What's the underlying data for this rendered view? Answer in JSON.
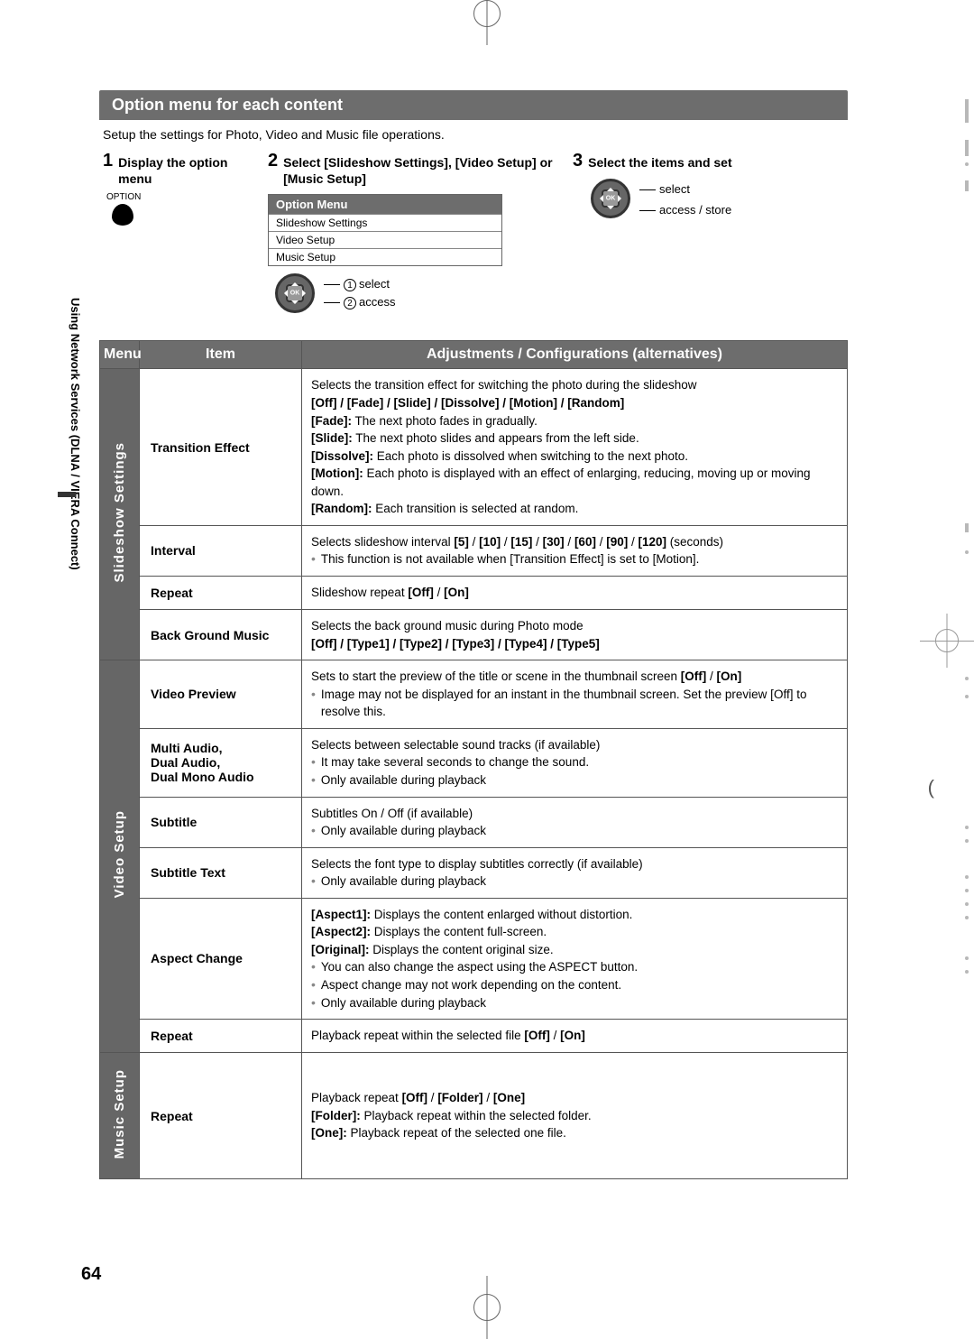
{
  "page_number": "64",
  "side_label": "Using Network Services (DLNA / VIERA Connect)",
  "section_title": "Option menu for each content",
  "intro_text": "Setup the settings for Photo, Video and Music file operations.",
  "steps": {
    "s1": {
      "num": "1",
      "text": "Display the option menu",
      "btn_caption": "OPTION"
    },
    "s2": {
      "num": "2",
      "text": "Select [Slideshow Settings], [Video Setup] or [Music Setup]",
      "menu_title": "Option Menu",
      "items": [
        "Slideshow Settings",
        "Video Setup",
        "Music Setup"
      ],
      "label_select": "select",
      "label_access": "access"
    },
    "s3": {
      "num": "3",
      "text": "Select the items and set",
      "label_select": "select",
      "label_access": "access / store"
    }
  },
  "table": {
    "headers": {
      "menu": "Menu",
      "item": "Item",
      "adj": "Adjustments / Configurations (alternatives)"
    },
    "groups": [
      {
        "cat": "Slideshow Settings",
        "rows": [
          {
            "item": "Transition Effect",
            "lines": [
              {
                "t": "Selects the transition effect for switching the photo during the slideshow"
              },
              {
                "b": "[Off] / [Fade] / [Slide] / [Dissolve] / [Motion] / [Random]"
              },
              {
                "h": "[Fade]: The next photo fades in gradually."
              },
              {
                "h": "[Slide]: The next photo slides and appears from the left side."
              },
              {
                "h": "[Dissolve]: Each photo is dissolved when switching to the next photo."
              },
              {
                "h": "[Motion]: Each photo is displayed with an effect of enlarging, reducing, moving up or moving down."
              },
              {
                "h": "[Random]: Each transition is selected at random."
              }
            ]
          },
          {
            "item": "Interval",
            "lines": [
              {
                "m": "Selects slideshow interval [5] / [10] / [15] / [30] / [60] / [90] / [120] (seconds)"
              },
              {
                "bl": "This function is not available when [Transition Effect] is set to [Motion]."
              }
            ]
          },
          {
            "item": "Repeat",
            "lines": [
              {
                "m": "Slideshow repeat [Off] / [On]"
              }
            ]
          },
          {
            "item": "Back Ground Music",
            "lines": [
              {
                "t": "Selects the back ground music during Photo mode"
              },
              {
                "b": "[Off] / [Type1] / [Type2] / [Type3] / [Type4] / [Type5]"
              }
            ]
          }
        ]
      },
      {
        "cat": "Video Setup",
        "rows": [
          {
            "item": "Video Preview",
            "lines": [
              {
                "m": "Sets to start the preview of the title or scene in the thumbnail screen [Off] / [On]"
              },
              {
                "bl": "Image may not be displayed for an instant in the thumbnail screen. Set the preview [Off] to resolve this."
              }
            ]
          },
          {
            "item": "Multi Audio,\nDual Audio,\nDual Mono Audio",
            "lines": [
              {
                "t": "Selects between selectable sound tracks (if available)"
              },
              {
                "bl": "It may take several seconds to change the sound."
              },
              {
                "bl": "Only available during playback"
              }
            ]
          },
          {
            "item": "Subtitle",
            "lines": [
              {
                "t": "Subtitles On / Off (if available)"
              },
              {
                "bl": "Only available during playback"
              }
            ]
          },
          {
            "item": "Subtitle Text",
            "lines": [
              {
                "t": "Selects the font type to display subtitles correctly (if available)"
              },
              {
                "bl": "Only available during playback"
              }
            ]
          },
          {
            "item": "Aspect Change",
            "lines": [
              {
                "h": "[Aspect1]: Displays the content enlarged without distortion."
              },
              {
                "h": "[Aspect2]: Displays the content full-screen."
              },
              {
                "h": "[Original]: Displays the content original size."
              },
              {
                "bl": "You can also change the aspect using the ASPECT button."
              },
              {
                "bl": "Aspect change may not work depending on the content."
              },
              {
                "bl": "Only available during playback"
              }
            ]
          },
          {
            "item": "Repeat",
            "lines": [
              {
                "m": "Playback repeat within the selected file [Off] / [On]"
              }
            ]
          }
        ]
      },
      {
        "cat": "Music Setup",
        "rows": [
          {
            "item": "Repeat",
            "lines": [
              {
                "m": "Playback repeat [Off] / [Folder] / [One]"
              },
              {
                "h": "[Folder]: Playback repeat within the selected folder."
              },
              {
                "h": "[One]: Playback repeat of the selected one file."
              }
            ]
          }
        ]
      }
    ]
  }
}
